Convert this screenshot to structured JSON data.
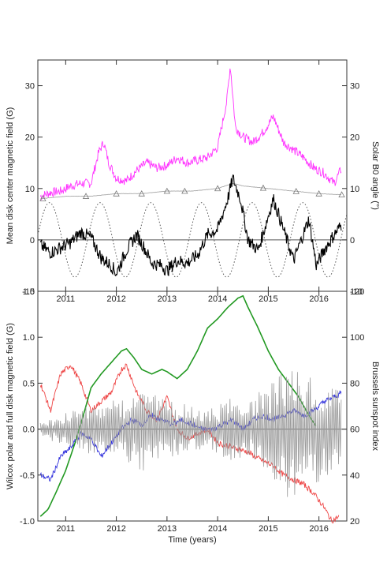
{
  "chart_data": [
    {
      "type": "line",
      "ylabel": "Mean disk center magnetic field (G)",
      "y2label": "Solar B0 angle (°)",
      "xlim": [
        2010.45,
        2016.55
      ],
      "ylim": [
        -10,
        35
      ],
      "y2lim": [
        -10,
        35
      ],
      "xticks": [
        "2011",
        "2012",
        "2013",
        "2014",
        "2015",
        "2016"
      ],
      "yticks": [
        "-10",
        "0",
        "10",
        "20",
        "30"
      ],
      "y2ticks": [
        "-10",
        "0",
        "10",
        "20",
        "30"
      ],
      "series": [
        {
          "color": "#ff33ff",
          "x": [
            2010.5,
            2010.7,
            2010.9,
            2011.1,
            2011.3,
            2011.5,
            2011.65,
            2011.75,
            2011.85,
            2012.0,
            2012.2,
            2012.4,
            2012.6,
            2012.8,
            2013.0,
            2013.2,
            2013.4,
            2013.6,
            2013.8,
            2014.0,
            2014.1,
            2014.18,
            2014.25,
            2014.35,
            2014.5,
            2014.7,
            2014.9,
            2015.0,
            2015.1,
            2015.3,
            2015.5,
            2015.7,
            2015.9,
            2016.1,
            2016.3,
            2016.45
          ],
          "y": [
            8.5,
            9.2,
            9.5,
            10.5,
            11.0,
            11.0,
            17.0,
            19.0,
            15.0,
            12.0,
            11.5,
            13.5,
            15.0,
            14.0,
            14.5,
            16.0,
            15.0,
            15.5,
            16.0,
            18.0,
            23.0,
            27.0,
            34.0,
            22.0,
            20.0,
            19.0,
            21.0,
            22.5,
            24.0,
            19.0,
            17.5,
            16.0,
            14.0,
            13.0,
            11.0,
            14.0
          ]
        },
        {
          "color": "#a8a8a8",
          "x": [
            2010.5,
            2011.0,
            2011.5,
            2012.0,
            2012.5,
            2013.0,
            2013.5,
            2014.0,
            2014.3,
            2014.5,
            2015.0,
            2015.5,
            2016.0,
            2016.45
          ],
          "y": [
            8.0,
            8.5,
            8.5,
            9.0,
            9.0,
            9.5,
            9.5,
            10.0,
            11.0,
            10.5,
            10.0,
            9.5,
            9.0,
            8.8
          ]
        },
        {
          "color": "#000000",
          "x": [
            2010.5,
            2010.7,
            2010.9,
            2011.1,
            2011.3,
            2011.5,
            2011.7,
            2011.9,
            2012.0,
            2012.2,
            2012.4,
            2012.55,
            2012.7,
            2012.9,
            2013.0,
            2013.2,
            2013.4,
            2013.6,
            2013.8,
            2014.0,
            2014.1,
            2014.2,
            2014.3,
            2014.45,
            2014.6,
            2014.8,
            2014.95,
            2015.1,
            2015.3,
            2015.5,
            2015.65,
            2015.8,
            2015.95,
            2016.1,
            2016.3,
            2016.45
          ],
          "y": [
            -1.0,
            -2.5,
            -1.5,
            -0.5,
            1.5,
            0.5,
            -3.5,
            -5.0,
            -6.5,
            -2.0,
            1.0,
            -1.5,
            -4.5,
            -5.0,
            -6.0,
            -4.0,
            -4.5,
            -3.0,
            1.0,
            2.0,
            5.0,
            8.0,
            12.0,
            8.0,
            0.0,
            -2.0,
            3.0,
            8.0,
            2.0,
            -4.0,
            0.0,
            4.0,
            -5.0,
            -2.0,
            1.0,
            3.0
          ]
        },
        {
          "color": "#555555",
          "style": "dotted",
          "period_years": 1.0,
          "amplitude": 7.25,
          "peak_month": "September"
        }
      ]
    },
    {
      "type": "line",
      "xlabel": "Time (years)",
      "ylabel": "Wilcox polar and full disk magnetic field (G)",
      "y2label": "Brussels sunspot index",
      "xlim": [
        2010.45,
        2016.55
      ],
      "ylim": [
        -1.0,
        1.5
      ],
      "y2lim": [
        20,
        120
      ],
      "xticks": [
        "2011",
        "2012",
        "2013",
        "2014",
        "2015",
        "2016"
      ],
      "yticks": [
        "-1.0",
        "-0.5",
        "0.0",
        "0.5",
        "1.0",
        "1.5"
      ],
      "y2ticks": [
        "20",
        "40",
        "60",
        "80",
        "100",
        "120"
      ],
      "series": [
        {
          "color": "#ee4444",
          "x": [
            2010.5,
            2010.7,
            2010.9,
            2011.1,
            2011.3,
            2011.5,
            2011.7,
            2011.9,
            2012.1,
            2012.2,
            2012.4,
            2012.6,
            2012.8,
            2013.0,
            2013.2,
            2013.4,
            2013.6,
            2013.8,
            2014.0,
            2014.3,
            2014.6,
            2014.9,
            2015.1,
            2015.3,
            2015.5,
            2015.7,
            2015.9,
            2016.1,
            2016.25,
            2016.4
          ],
          "y": [
            0.5,
            0.2,
            0.6,
            0.7,
            0.5,
            0.2,
            0.3,
            0.4,
            0.65,
            0.7,
            0.4,
            0.2,
            0.1,
            0.35,
            0.0,
            -0.1,
            -0.05,
            0.0,
            -0.15,
            -0.2,
            -0.25,
            -0.35,
            -0.4,
            -0.5,
            -0.55,
            -0.6,
            -0.7,
            -0.85,
            -1.0,
            -0.95
          ]
        },
        {
          "color": "#3333dd",
          "x": [
            2010.5,
            2010.7,
            2010.9,
            2011.1,
            2011.3,
            2011.5,
            2011.7,
            2011.9,
            2012.1,
            2012.3,
            2012.5,
            2012.7,
            2012.9,
            2013.1,
            2013.3,
            2013.5,
            2013.7,
            2013.9,
            2014.1,
            2014.3,
            2014.5,
            2014.7,
            2014.9,
            2015.1,
            2015.3,
            2015.5,
            2015.7,
            2015.9,
            2016.1,
            2016.3,
            2016.45
          ],
          "y": [
            -0.5,
            -0.55,
            -0.3,
            -0.2,
            -0.05,
            -0.1,
            -0.3,
            -0.15,
            0.0,
            0.1,
            0.05,
            0.15,
            0.1,
            0.05,
            0.1,
            0.05,
            0.0,
            0.0,
            0.05,
            0.1,
            0.0,
            0.1,
            0.15,
            0.1,
            0.15,
            0.2,
            0.15,
            0.2,
            0.3,
            0.35,
            0.4
          ]
        },
        {
          "color": "#229922",
          "axis": "right",
          "x": [
            2010.5,
            2010.65,
            2010.8,
            2011.0,
            2011.2,
            2011.4,
            2011.5,
            2011.7,
            2011.9,
            2012.1,
            2012.2,
            2012.35,
            2012.5,
            2012.7,
            2012.9,
            2013.0,
            2013.2,
            2013.4,
            2013.6,
            2013.8,
            2014.0,
            2014.2,
            2014.4,
            2014.5,
            2014.6,
            2014.8,
            2015.0,
            2015.2,
            2015.4,
            2015.6,
            2015.8,
            2015.95
          ],
          "y": [
            22,
            25,
            32,
            42,
            55,
            70,
            78,
            84,
            89,
            94,
            95,
            91,
            86,
            84,
            86,
            85,
            82,
            86,
            94,
            104,
            108,
            113,
            117,
            118,
            113,
            104,
            94,
            86,
            80,
            74,
            66,
            61
          ]
        },
        {
          "color": "#9a9a9a",
          "noisy": true,
          "x": [
            2010.5,
            2010.8,
            2011.1,
            2011.4,
            2011.7,
            2012.0,
            2012.3,
            2012.6,
            2012.9,
            2013.2,
            2013.5,
            2013.8,
            2014.1,
            2014.4,
            2014.7,
            2015.0,
            2015.3,
            2015.6,
            2015.9,
            2016.2,
            2016.45
          ],
          "amplitude": [
            0.08,
            0.12,
            0.2,
            0.3,
            0.25,
            0.3,
            0.4,
            0.5,
            0.35,
            0.3,
            0.25,
            0.2,
            0.3,
            0.35,
            0.35,
            0.5,
            0.7,
            0.8,
            0.6,
            0.5,
            0.45
          ]
        }
      ]
    }
  ]
}
